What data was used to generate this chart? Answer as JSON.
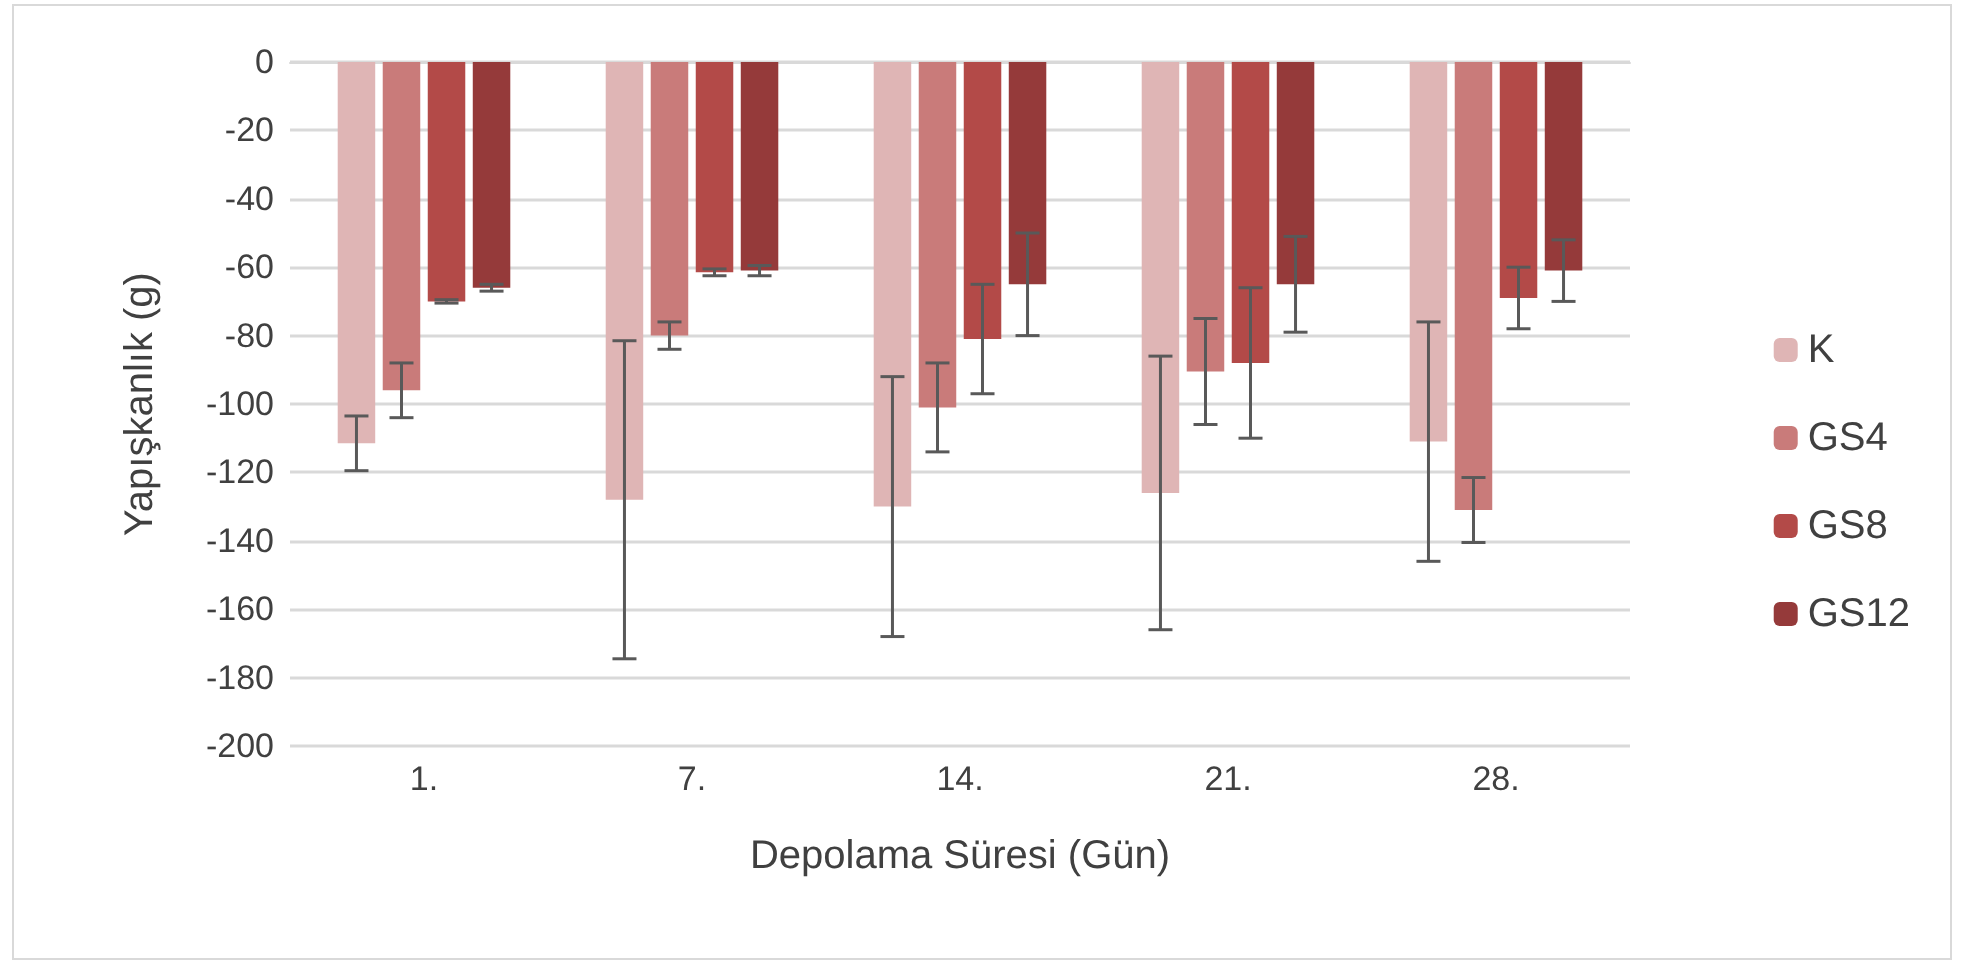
{
  "chart_data": {
    "type": "bar",
    "xlabel": "Depolama Süresi (Gün)",
    "ylabel": "Yapışkanlık (g)",
    "categories": [
      "1.",
      "7.",
      "14.",
      "21.",
      "28."
    ],
    "series": [
      {
        "name": "K",
        "color": "#dfb5b5",
        "values": [
          -111.5,
          -128,
          -130,
          -126,
          -111
        ],
        "errors": [
          8,
          46.5,
          38,
          40,
          35
        ]
      },
      {
        "name": "GS4",
        "color": "#c97b7a",
        "values": [
          -96,
          -80,
          -101,
          -90.5,
          -131
        ],
        "errors": [
          8,
          4,
          13,
          15.5,
          9.5
        ]
      },
      {
        "name": "GS8",
        "color": "#b34a48",
        "values": [
          -70,
          -61.5,
          -81,
          -88,
          -69
        ],
        "errors": [
          0.5,
          1,
          16,
          22,
          9
        ]
      },
      {
        "name": "GS12",
        "color": "#953a3a",
        "values": [
          -66,
          -61,
          -65,
          -65,
          -61
        ],
        "errors": [
          1,
          1.5,
          15,
          14,
          9
        ]
      }
    ],
    "ylim": [
      -200,
      0
    ],
    "yticks": [
      -200,
      -180,
      -160,
      -140,
      -120,
      -100,
      -80,
      -60,
      -40,
      -20,
      0
    ],
    "grid": "y",
    "legend": "right"
  }
}
